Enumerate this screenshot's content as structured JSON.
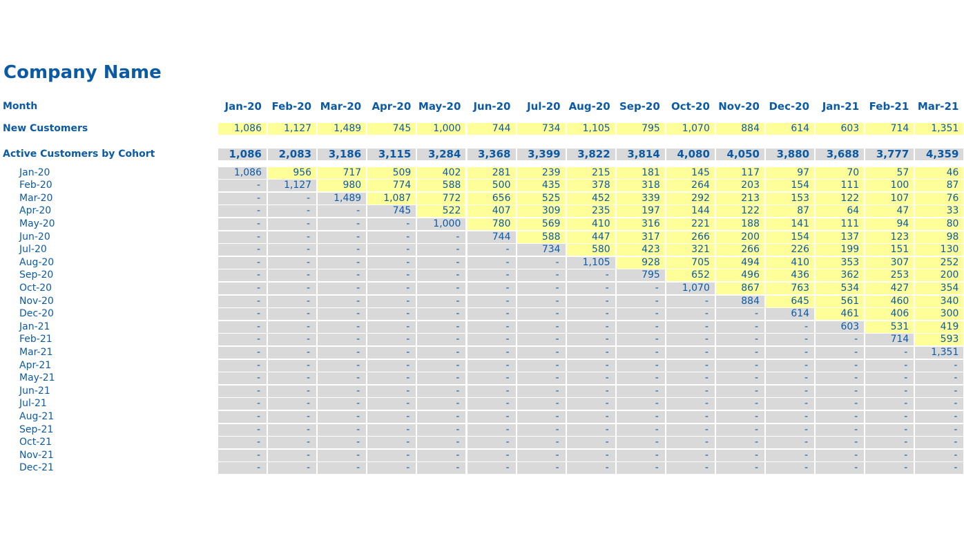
{
  "title": "Company Name",
  "header_label": "Month",
  "months": [
    "Jan-20",
    "Feb-20",
    "Mar-20",
    "Apr-20",
    "May-20",
    "Jun-20",
    "Jul-20",
    "Aug-20",
    "Sep-20",
    "Oct-20",
    "Nov-20",
    "Dec-20",
    "Jan-21",
    "Feb-21",
    "Mar-21"
  ],
  "new_customers": {
    "label": "New Customers",
    "values": [
      "1,086",
      "1,127",
      "1,489",
      "745",
      "1,000",
      "744",
      "734",
      "1,105",
      "795",
      "1,070",
      "884",
      "614",
      "603",
      "714",
      "1,351"
    ]
  },
  "active_customers": {
    "label": "Active Customers by Cohort",
    "totals": [
      "1,086",
      "2,083",
      "3,186",
      "3,115",
      "3,284",
      "3,368",
      "3,399",
      "3,822",
      "3,814",
      "4,080",
      "4,050",
      "3,880",
      "3,688",
      "3,777",
      "4,359"
    ]
  },
  "cohorts": [
    {
      "label": "Jan-20",
      "values": [
        "1,086",
        "956",
        "717",
        "509",
        "402",
        "281",
        "239",
        "215",
        "181",
        "145",
        "117",
        "97",
        "70",
        "57",
        "46"
      ]
    },
    {
      "label": "Feb-20",
      "values": [
        "-",
        "1,127",
        "980",
        "774",
        "588",
        "500",
        "435",
        "378",
        "318",
        "264",
        "203",
        "154",
        "111",
        "100",
        "87"
      ]
    },
    {
      "label": "Mar-20",
      "values": [
        "-",
        "-",
        "1,489",
        "1,087",
        "772",
        "656",
        "525",
        "452",
        "339",
        "292",
        "213",
        "153",
        "122",
        "107",
        "76"
      ]
    },
    {
      "label": "Apr-20",
      "values": [
        "-",
        "-",
        "-",
        "745",
        "522",
        "407",
        "309",
        "235",
        "197",
        "144",
        "122",
        "87",
        "64",
        "47",
        "33"
      ]
    },
    {
      "label": "May-20",
      "values": [
        "-",
        "-",
        "-",
        "-",
        "1,000",
        "780",
        "569",
        "410",
        "316",
        "221",
        "188",
        "141",
        "111",
        "94",
        "80"
      ]
    },
    {
      "label": "Jun-20",
      "values": [
        "-",
        "-",
        "-",
        "-",
        "-",
        "744",
        "588",
        "447",
        "317",
        "266",
        "200",
        "154",
        "137",
        "123",
        "98"
      ]
    },
    {
      "label": "Jul-20",
      "values": [
        "-",
        "-",
        "-",
        "-",
        "-",
        "-",
        "734",
        "580",
        "423",
        "321",
        "266",
        "226",
        "199",
        "151",
        "130"
      ]
    },
    {
      "label": "Aug-20",
      "values": [
        "-",
        "-",
        "-",
        "-",
        "-",
        "-",
        "-",
        "1,105",
        "928",
        "705",
        "494",
        "410",
        "353",
        "307",
        "252"
      ]
    },
    {
      "label": "Sep-20",
      "values": [
        "-",
        "-",
        "-",
        "-",
        "-",
        "-",
        "-",
        "-",
        "795",
        "652",
        "496",
        "436",
        "362",
        "253",
        "200"
      ]
    },
    {
      "label": "Oct-20",
      "values": [
        "-",
        "-",
        "-",
        "-",
        "-",
        "-",
        "-",
        "-",
        "-",
        "1,070",
        "867",
        "763",
        "534",
        "427",
        "354"
      ]
    },
    {
      "label": "Nov-20",
      "values": [
        "-",
        "-",
        "-",
        "-",
        "-",
        "-",
        "-",
        "-",
        "-",
        "-",
        "884",
        "645",
        "561",
        "460",
        "340"
      ]
    },
    {
      "label": "Dec-20",
      "values": [
        "-",
        "-",
        "-",
        "-",
        "-",
        "-",
        "-",
        "-",
        "-",
        "-",
        "-",
        "614",
        "461",
        "406",
        "300"
      ]
    },
    {
      "label": "Jan-21",
      "values": [
        "-",
        "-",
        "-",
        "-",
        "-",
        "-",
        "-",
        "-",
        "-",
        "-",
        "-",
        "-",
        "603",
        "531",
        "419"
      ]
    },
    {
      "label": "Feb-21",
      "values": [
        "-",
        "-",
        "-",
        "-",
        "-",
        "-",
        "-",
        "-",
        "-",
        "-",
        "-",
        "-",
        "-",
        "714",
        "593"
      ]
    },
    {
      "label": "Mar-21",
      "values": [
        "-",
        "-",
        "-",
        "-",
        "-",
        "-",
        "-",
        "-",
        "-",
        "-",
        "-",
        "-",
        "-",
        "-",
        "1,351"
      ]
    },
    {
      "label": "Apr-21",
      "values": [
        "-",
        "-",
        "-",
        "-",
        "-",
        "-",
        "-",
        "-",
        "-",
        "-",
        "-",
        "-",
        "-",
        "-",
        "-"
      ]
    },
    {
      "label": "May-21",
      "values": [
        "-",
        "-",
        "-",
        "-",
        "-",
        "-",
        "-",
        "-",
        "-",
        "-",
        "-",
        "-",
        "-",
        "-",
        "-"
      ]
    },
    {
      "label": "Jun-21",
      "values": [
        "-",
        "-",
        "-",
        "-",
        "-",
        "-",
        "-",
        "-",
        "-",
        "-",
        "-",
        "-",
        "-",
        "-",
        "-"
      ]
    },
    {
      "label": "Jul-21",
      "values": [
        "-",
        "-",
        "-",
        "-",
        "-",
        "-",
        "-",
        "-",
        "-",
        "-",
        "-",
        "-",
        "-",
        "-",
        "-"
      ]
    },
    {
      "label": "Aug-21",
      "values": [
        "-",
        "-",
        "-",
        "-",
        "-",
        "-",
        "-",
        "-",
        "-",
        "-",
        "-",
        "-",
        "-",
        "-",
        "-"
      ]
    },
    {
      "label": "Sep-21",
      "values": [
        "-",
        "-",
        "-",
        "-",
        "-",
        "-",
        "-",
        "-",
        "-",
        "-",
        "-",
        "-",
        "-",
        "-",
        "-"
      ]
    },
    {
      "label": "Oct-21",
      "values": [
        "-",
        "-",
        "-",
        "-",
        "-",
        "-",
        "-",
        "-",
        "-",
        "-",
        "-",
        "-",
        "-",
        "-",
        "-"
      ]
    },
    {
      "label": "Nov-21",
      "values": [
        "-",
        "-",
        "-",
        "-",
        "-",
        "-",
        "-",
        "-",
        "-",
        "-",
        "-",
        "-",
        "-",
        "-",
        "-"
      ]
    },
    {
      "label": "Dec-21",
      "values": [
        "-",
        "-",
        "-",
        "-",
        "-",
        "-",
        "-",
        "-",
        "-",
        "-",
        "-",
        "-",
        "-",
        "-",
        "-"
      ]
    }
  ],
  "colors": {
    "text": "#0b5aa6",
    "cell_gray": "#d9d9d9",
    "cell_yellow": "#ffff99"
  }
}
